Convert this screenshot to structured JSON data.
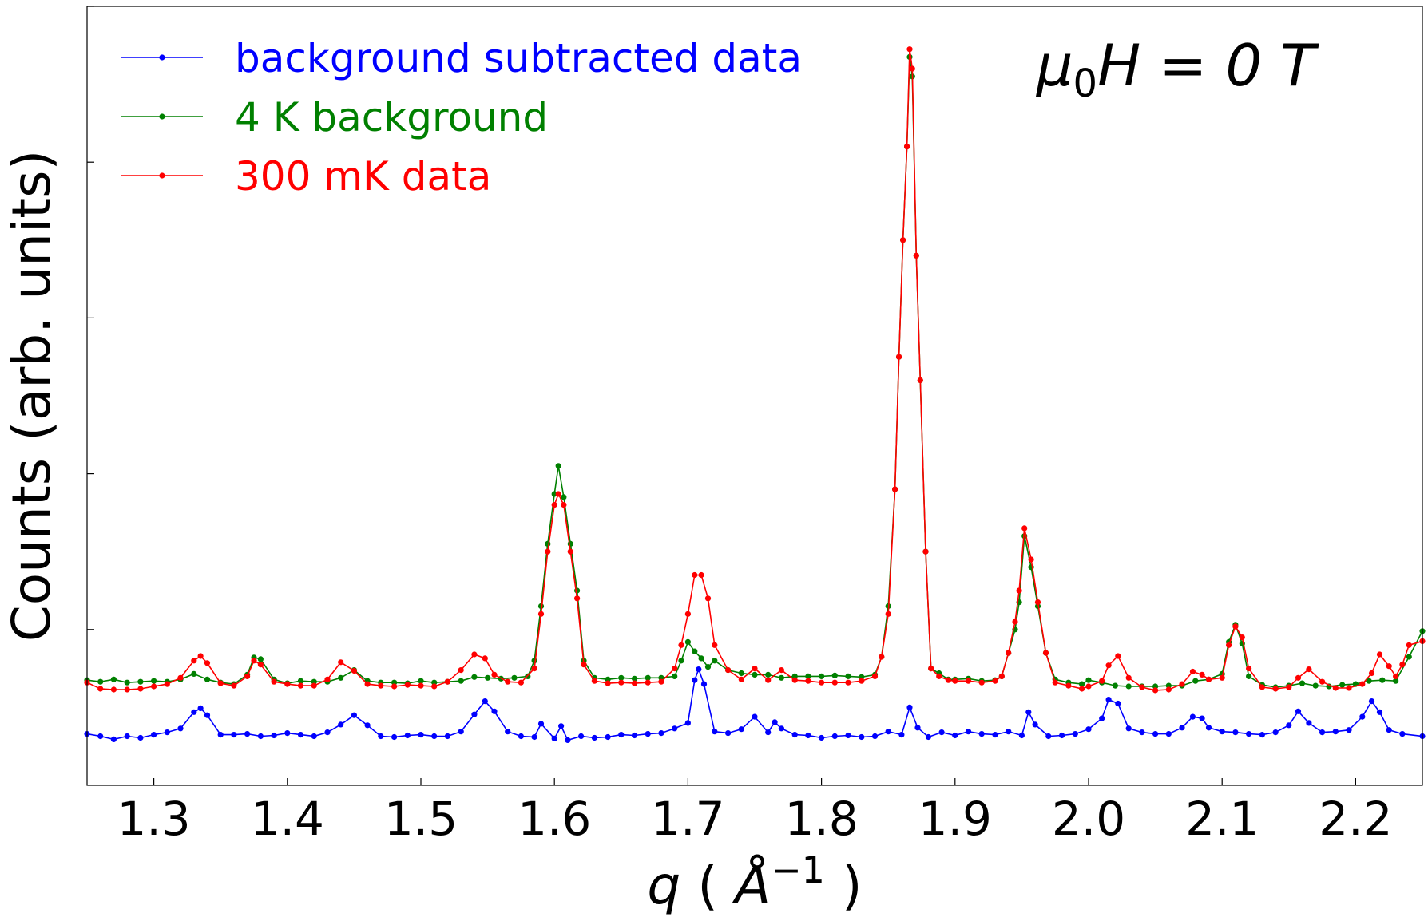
{
  "chart_data": {
    "type": "line",
    "title": "",
    "annotation": {
      "prefix": "μ",
      "subscript": "0",
      "suffix": "H = 0 T"
    },
    "xlabel": {
      "var": "q",
      "open": " ( ",
      "unit": "Å",
      "sup": "−1",
      "close": " )"
    },
    "ylabel": "Counts (arb. units)",
    "xlim": [
      1.25,
      2.25
    ],
    "ylim": [
      0,
      100
    ],
    "xticks": [
      1.3,
      1.4,
      1.5,
      1.6,
      1.7,
      1.8,
      1.9,
      2.0,
      2.1,
      2.2
    ],
    "xtick_labels": [
      "1.3",
      "1.4",
      "1.5",
      "1.6",
      "1.7",
      "1.8",
      "1.9",
      "2.0",
      "2.1",
      "2.2"
    ],
    "yticks": [
      20,
      40,
      60,
      80,
      100
    ],
    "ytick_labels": false,
    "grid": false,
    "legend": "top-left",
    "series": [
      {
        "name": "background subtracted data",
        "color": "#0000ff",
        "x": [
          1.25,
          1.26,
          1.27,
          1.28,
          1.29,
          1.3,
          1.31,
          1.32,
          1.33,
          1.335,
          1.34,
          1.35,
          1.36,
          1.37,
          1.38,
          1.39,
          1.4,
          1.41,
          1.42,
          1.43,
          1.44,
          1.45,
          1.46,
          1.47,
          1.48,
          1.49,
          1.5,
          1.51,
          1.52,
          1.53,
          1.54,
          1.548,
          1.555,
          1.565,
          1.575,
          1.585,
          1.59,
          1.6,
          1.605,
          1.61,
          1.62,
          1.63,
          1.64,
          1.65,
          1.66,
          1.67,
          1.68,
          1.69,
          1.7,
          1.705,
          1.708,
          1.712,
          1.72,
          1.73,
          1.74,
          1.75,
          1.76,
          1.765,
          1.77,
          1.78,
          1.79,
          1.8,
          1.81,
          1.82,
          1.83,
          1.84,
          1.85,
          1.86,
          1.866,
          1.872,
          1.88,
          1.89,
          1.9,
          1.91,
          1.92,
          1.93,
          1.94,
          1.95,
          1.955,
          1.96,
          1.97,
          1.98,
          1.99,
          2.0,
          2.01,
          2.015,
          2.022,
          2.03,
          2.04,
          2.05,
          2.06,
          2.07,
          2.078,
          2.085,
          2.09,
          2.1,
          2.11,
          2.12,
          2.13,
          2.14,
          2.15,
          2.157,
          2.165,
          2.175,
          2.185,
          2.195,
          2.205,
          2.212,
          2.218,
          2.225,
          2.235,
          2.25
        ],
        "y": [
          6.6,
          6.3,
          5.9,
          6.3,
          6.1,
          6.5,
          6.8,
          7.3,
          9.4,
          9.9,
          9.0,
          6.5,
          6.5,
          6.6,
          6.3,
          6.4,
          6.7,
          6.5,
          6.3,
          6.8,
          7.8,
          9.0,
          7.7,
          6.3,
          6.2,
          6.4,
          6.5,
          6.3,
          6.3,
          6.9,
          9.1,
          10.8,
          9.5,
          6.9,
          6.3,
          6.2,
          7.9,
          6.0,
          7.6,
          5.8,
          6.3,
          6.1,
          6.2,
          6.5,
          6.4,
          6.6,
          6.7,
          7.3,
          8.0,
          13.5,
          14.9,
          13.0,
          6.9,
          6.7,
          7.2,
          8.8,
          6.8,
          8.1,
          7.3,
          6.5,
          6.4,
          6.1,
          6.3,
          6.4,
          6.2,
          6.3,
          6.9,
          6.5,
          10.0,
          7.4,
          6.2,
          6.8,
          6.4,
          6.9,
          6.6,
          6.5,
          6.9,
          6.4,
          9.4,
          7.8,
          6.3,
          6.4,
          6.6,
          7.2,
          8.6,
          11.0,
          10.5,
          7.3,
          6.8,
          6.6,
          6.6,
          7.4,
          8.8,
          8.6,
          7.4,
          6.9,
          6.8,
          6.6,
          6.5,
          6.8,
          7.7,
          9.5,
          8.0,
          6.8,
          6.9,
          7.1,
          8.8,
          10.8,
          9.4,
          7.1,
          6.6,
          6.3
        ]
      },
      {
        "name": "4 K background",
        "color": "#008000",
        "x": [
          1.25,
          1.26,
          1.27,
          1.28,
          1.29,
          1.3,
          1.31,
          1.32,
          1.33,
          1.34,
          1.35,
          1.36,
          1.37,
          1.375,
          1.38,
          1.39,
          1.4,
          1.41,
          1.42,
          1.43,
          1.44,
          1.45,
          1.46,
          1.47,
          1.48,
          1.49,
          1.5,
          1.51,
          1.52,
          1.53,
          1.54,
          1.55,
          1.56,
          1.57,
          1.58,
          1.585,
          1.59,
          1.595,
          1.6,
          1.603,
          1.607,
          1.612,
          1.617,
          1.622,
          1.63,
          1.64,
          1.65,
          1.66,
          1.67,
          1.68,
          1.69,
          1.695,
          1.7,
          1.705,
          1.71,
          1.715,
          1.72,
          1.73,
          1.74,
          1.75,
          1.76,
          1.77,
          1.78,
          1.79,
          1.8,
          1.81,
          1.82,
          1.83,
          1.84,
          1.845,
          1.85,
          1.855,
          1.858,
          1.861,
          1.864,
          1.866,
          1.868,
          1.871,
          1.874,
          1.878,
          1.882,
          1.888,
          1.895,
          1.9,
          1.91,
          1.92,
          1.93,
          1.935,
          1.94,
          1.945,
          1.948,
          1.952,
          1.957,
          1.962,
          1.968,
          1.975,
          1.985,
          1.995,
          2.0,
          2.01,
          2.02,
          2.03,
          2.04,
          2.05,
          2.06,
          2.07,
          2.08,
          2.09,
          2.1,
          2.105,
          2.11,
          2.115,
          2.12,
          2.13,
          2.14,
          2.15,
          2.16,
          2.17,
          2.18,
          2.19,
          2.2,
          2.21,
          2.22,
          2.23,
          2.24,
          2.25
        ],
        "y": [
          13.5,
          13.3,
          13.6,
          13.2,
          13.3,
          13.4,
          13.3,
          13.6,
          14.3,
          13.6,
          13.2,
          13.0,
          14.2,
          16.4,
          16.2,
          13.6,
          13.1,
          13.4,
          13.3,
          13.3,
          13.8,
          14.8,
          13.4,
          13.2,
          13.2,
          13.1,
          13.4,
          13.2,
          13.3,
          13.4,
          13.9,
          13.8,
          13.7,
          13.8,
          14.0,
          16.0,
          23.0,
          31.0,
          37.4,
          41.0,
          37.0,
          31.0,
          25.0,
          16.0,
          13.8,
          13.6,
          13.8,
          13.7,
          13.8,
          13.8,
          14.0,
          16.0,
          18.4,
          17.2,
          16.3,
          15.2,
          16.0,
          14.8,
          14.4,
          14.2,
          14.2,
          13.8,
          14.0,
          14.0,
          14.0,
          14.1,
          14.0,
          13.9,
          14.2,
          16.5,
          23.0,
          38.0,
          55.0,
          70.0,
          82.0,
          93.5,
          91.0,
          68.0,
          52.0,
          30.0,
          15.0,
          14.4,
          13.6,
          13.6,
          13.7,
          13.4,
          13.5,
          14.0,
          17.0,
          20.0,
          23.5,
          32.0,
          28.0,
          23.0,
          17.0,
          13.6,
          13.2,
          13.0,
          13.5,
          13.2,
          12.8,
          12.7,
          12.7,
          12.7,
          12.8,
          12.8,
          13.4,
          13.6,
          14.3,
          18.4,
          20.6,
          18.2,
          14.0,
          12.9,
          12.6,
          12.8,
          13.1,
          12.8,
          12.7,
          12.9,
          13.0,
          13.4,
          13.5,
          13.4,
          16.5,
          19.8
        ]
      },
      {
        "name": "300 mK data",
        "color": "#ff0000",
        "x": [
          1.25,
          1.26,
          1.27,
          1.28,
          1.29,
          1.3,
          1.31,
          1.32,
          1.33,
          1.335,
          1.34,
          1.35,
          1.36,
          1.37,
          1.375,
          1.38,
          1.39,
          1.4,
          1.41,
          1.42,
          1.43,
          1.44,
          1.45,
          1.46,
          1.47,
          1.48,
          1.49,
          1.5,
          1.51,
          1.52,
          1.53,
          1.54,
          1.548,
          1.555,
          1.565,
          1.575,
          1.585,
          1.59,
          1.595,
          1.6,
          1.603,
          1.607,
          1.612,
          1.617,
          1.622,
          1.63,
          1.64,
          1.65,
          1.66,
          1.67,
          1.68,
          1.69,
          1.695,
          1.7,
          1.705,
          1.71,
          1.715,
          1.72,
          1.73,
          1.74,
          1.75,
          1.76,
          1.77,
          1.78,
          1.79,
          1.8,
          1.81,
          1.82,
          1.83,
          1.84,
          1.845,
          1.85,
          1.855,
          1.858,
          1.861,
          1.864,
          1.866,
          1.868,
          1.871,
          1.874,
          1.878,
          1.882,
          1.888,
          1.895,
          1.9,
          1.91,
          1.92,
          1.93,
          1.935,
          1.94,
          1.945,
          1.948,
          1.952,
          1.957,
          1.962,
          1.968,
          1.975,
          1.985,
          1.995,
          2.0,
          2.01,
          2.015,
          2.022,
          2.03,
          2.04,
          2.05,
          2.06,
          2.07,
          2.078,
          2.085,
          2.09,
          2.1,
          2.105,
          2.11,
          2.115,
          2.12,
          2.13,
          2.14,
          2.15,
          2.157,
          2.165,
          2.175,
          2.185,
          2.195,
          2.205,
          2.212,
          2.218,
          2.225,
          2.23,
          2.235,
          2.24,
          2.25
        ],
        "y": [
          13.2,
          12.4,
          12.3,
          12.3,
          12.4,
          12.7,
          13.0,
          13.8,
          16.0,
          16.6,
          15.7,
          13.1,
          12.8,
          14.0,
          16.0,
          15.5,
          13.3,
          13.0,
          12.8,
          12.8,
          13.6,
          15.8,
          14.7,
          13.0,
          12.8,
          12.7,
          12.9,
          12.8,
          12.7,
          13.3,
          14.8,
          16.8,
          16.3,
          14.2,
          13.3,
          13.2,
          15.0,
          22.0,
          30.0,
          36.0,
          37.4,
          36.0,
          30.0,
          24.0,
          15.5,
          13.4,
          13.1,
          13.2,
          13.1,
          13.2,
          13.3,
          15.0,
          18.0,
          22.0,
          27.0,
          27.0,
          24.0,
          18.0,
          14.8,
          13.6,
          15.0,
          13.5,
          14.8,
          13.5,
          13.4,
          13.2,
          13.2,
          13.2,
          13.4,
          14.0,
          16.5,
          22.0,
          38.0,
          55.0,
          70.0,
          82.0,
          94.5,
          92.0,
          68.0,
          52.0,
          30.0,
          15.0,
          14.0,
          13.5,
          13.4,
          13.4,
          13.2,
          13.4,
          14.0,
          17.0,
          21.0,
          25.0,
          33.0,
          29.0,
          23.5,
          17.0,
          13.2,
          12.8,
          12.4,
          12.7,
          13.4,
          15.4,
          16.6,
          13.8,
          12.6,
          12.2,
          12.3,
          13.0,
          14.6,
          14.2,
          13.6,
          13.8,
          18.0,
          20.4,
          19.0,
          15.0,
          12.6,
          12.4,
          12.6,
          13.8,
          14.9,
          13.3,
          12.5,
          12.5,
          13.0,
          14.4,
          16.8,
          15.3,
          14.0,
          15.5,
          18.0,
          18.5
        ]
      }
    ]
  }
}
